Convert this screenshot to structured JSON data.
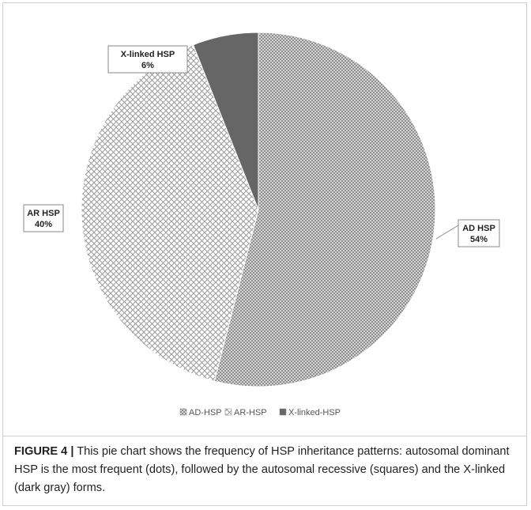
{
  "figure": {
    "label": "FIGURE 4 |",
    "caption": "This pie chart shows the frequency of HSP inheritance patterns: autosomal dominant HSP is the most frequent (dots), followed by the autosomal recessive (squares) and the X-linked (dark gray) forms."
  },
  "chart_data": {
    "type": "pie",
    "title": "",
    "slices": [
      {
        "category": "AD HSP",
        "value": 54,
        "value_label": "54%",
        "legend": "AD-HSP",
        "color": "#a9a9a9",
        "pattern": "dots"
      },
      {
        "category": "AR HSP",
        "value": 40,
        "value_label": "40%",
        "legend": "AR-HSP",
        "color": "#bdbdbd",
        "pattern": "crosshatch"
      },
      {
        "category": "X-linked HSP",
        "value": 6,
        "value_label": "6%",
        "legend": "X-linked-HSP",
        "color": "#666666",
        "pattern": "solid"
      }
    ],
    "legend_position": "bottom"
  }
}
